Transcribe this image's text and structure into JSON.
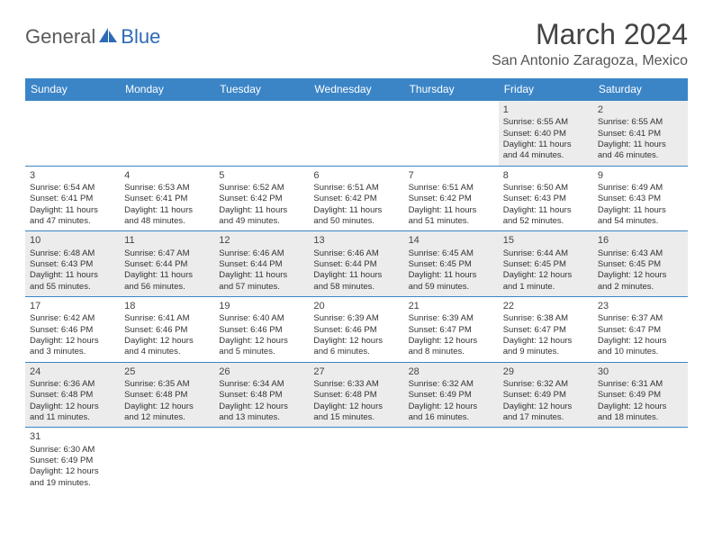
{
  "brand": {
    "text1": "General",
    "text2": "Blue",
    "logo_color": "#2d6bb5",
    "text_color": "#5a5a5a"
  },
  "title": "March 2024",
  "location": "San Antonio Zaragoza, Mexico",
  "colors": {
    "header_bg": "#3b85c7",
    "header_text": "#ffffff",
    "row_alt_bg": "#ececec",
    "border": "#3b85c7"
  },
  "weekdays": [
    "Sunday",
    "Monday",
    "Tuesday",
    "Wednesday",
    "Thursday",
    "Friday",
    "Saturday"
  ],
  "weeks": [
    [
      null,
      null,
      null,
      null,
      null,
      {
        "n": "1",
        "sr": "Sunrise: 6:55 AM",
        "ss": "Sunset: 6:40 PM",
        "d1": "Daylight: 11 hours",
        "d2": "and 44 minutes."
      },
      {
        "n": "2",
        "sr": "Sunrise: 6:55 AM",
        "ss": "Sunset: 6:41 PM",
        "d1": "Daylight: 11 hours",
        "d2": "and 46 minutes."
      }
    ],
    [
      {
        "n": "3",
        "sr": "Sunrise: 6:54 AM",
        "ss": "Sunset: 6:41 PM",
        "d1": "Daylight: 11 hours",
        "d2": "and 47 minutes."
      },
      {
        "n": "4",
        "sr": "Sunrise: 6:53 AM",
        "ss": "Sunset: 6:41 PM",
        "d1": "Daylight: 11 hours",
        "d2": "and 48 minutes."
      },
      {
        "n": "5",
        "sr": "Sunrise: 6:52 AM",
        "ss": "Sunset: 6:42 PM",
        "d1": "Daylight: 11 hours",
        "d2": "and 49 minutes."
      },
      {
        "n": "6",
        "sr": "Sunrise: 6:51 AM",
        "ss": "Sunset: 6:42 PM",
        "d1": "Daylight: 11 hours",
        "d2": "and 50 minutes."
      },
      {
        "n": "7",
        "sr": "Sunrise: 6:51 AM",
        "ss": "Sunset: 6:42 PM",
        "d1": "Daylight: 11 hours",
        "d2": "and 51 minutes."
      },
      {
        "n": "8",
        "sr": "Sunrise: 6:50 AM",
        "ss": "Sunset: 6:43 PM",
        "d1": "Daylight: 11 hours",
        "d2": "and 52 minutes."
      },
      {
        "n": "9",
        "sr": "Sunrise: 6:49 AM",
        "ss": "Sunset: 6:43 PM",
        "d1": "Daylight: 11 hours",
        "d2": "and 54 minutes."
      }
    ],
    [
      {
        "n": "10",
        "sr": "Sunrise: 6:48 AM",
        "ss": "Sunset: 6:43 PM",
        "d1": "Daylight: 11 hours",
        "d2": "and 55 minutes."
      },
      {
        "n": "11",
        "sr": "Sunrise: 6:47 AM",
        "ss": "Sunset: 6:44 PM",
        "d1": "Daylight: 11 hours",
        "d2": "and 56 minutes."
      },
      {
        "n": "12",
        "sr": "Sunrise: 6:46 AM",
        "ss": "Sunset: 6:44 PM",
        "d1": "Daylight: 11 hours",
        "d2": "and 57 minutes."
      },
      {
        "n": "13",
        "sr": "Sunrise: 6:46 AM",
        "ss": "Sunset: 6:44 PM",
        "d1": "Daylight: 11 hours",
        "d2": "and 58 minutes."
      },
      {
        "n": "14",
        "sr": "Sunrise: 6:45 AM",
        "ss": "Sunset: 6:45 PM",
        "d1": "Daylight: 11 hours",
        "d2": "and 59 minutes."
      },
      {
        "n": "15",
        "sr": "Sunrise: 6:44 AM",
        "ss": "Sunset: 6:45 PM",
        "d1": "Daylight: 12 hours",
        "d2": "and 1 minute."
      },
      {
        "n": "16",
        "sr": "Sunrise: 6:43 AM",
        "ss": "Sunset: 6:45 PM",
        "d1": "Daylight: 12 hours",
        "d2": "and 2 minutes."
      }
    ],
    [
      {
        "n": "17",
        "sr": "Sunrise: 6:42 AM",
        "ss": "Sunset: 6:46 PM",
        "d1": "Daylight: 12 hours",
        "d2": "and 3 minutes."
      },
      {
        "n": "18",
        "sr": "Sunrise: 6:41 AM",
        "ss": "Sunset: 6:46 PM",
        "d1": "Daylight: 12 hours",
        "d2": "and 4 minutes."
      },
      {
        "n": "19",
        "sr": "Sunrise: 6:40 AM",
        "ss": "Sunset: 6:46 PM",
        "d1": "Daylight: 12 hours",
        "d2": "and 5 minutes."
      },
      {
        "n": "20",
        "sr": "Sunrise: 6:39 AM",
        "ss": "Sunset: 6:46 PM",
        "d1": "Daylight: 12 hours",
        "d2": "and 6 minutes."
      },
      {
        "n": "21",
        "sr": "Sunrise: 6:39 AM",
        "ss": "Sunset: 6:47 PM",
        "d1": "Daylight: 12 hours",
        "d2": "and 8 minutes."
      },
      {
        "n": "22",
        "sr": "Sunrise: 6:38 AM",
        "ss": "Sunset: 6:47 PM",
        "d1": "Daylight: 12 hours",
        "d2": "and 9 minutes."
      },
      {
        "n": "23",
        "sr": "Sunrise: 6:37 AM",
        "ss": "Sunset: 6:47 PM",
        "d1": "Daylight: 12 hours",
        "d2": "and 10 minutes."
      }
    ],
    [
      {
        "n": "24",
        "sr": "Sunrise: 6:36 AM",
        "ss": "Sunset: 6:48 PM",
        "d1": "Daylight: 12 hours",
        "d2": "and 11 minutes."
      },
      {
        "n": "25",
        "sr": "Sunrise: 6:35 AM",
        "ss": "Sunset: 6:48 PM",
        "d1": "Daylight: 12 hours",
        "d2": "and 12 minutes."
      },
      {
        "n": "26",
        "sr": "Sunrise: 6:34 AM",
        "ss": "Sunset: 6:48 PM",
        "d1": "Daylight: 12 hours",
        "d2": "and 13 minutes."
      },
      {
        "n": "27",
        "sr": "Sunrise: 6:33 AM",
        "ss": "Sunset: 6:48 PM",
        "d1": "Daylight: 12 hours",
        "d2": "and 15 minutes."
      },
      {
        "n": "28",
        "sr": "Sunrise: 6:32 AM",
        "ss": "Sunset: 6:49 PM",
        "d1": "Daylight: 12 hours",
        "d2": "and 16 minutes."
      },
      {
        "n": "29",
        "sr": "Sunrise: 6:32 AM",
        "ss": "Sunset: 6:49 PM",
        "d1": "Daylight: 12 hours",
        "d2": "and 17 minutes."
      },
      {
        "n": "30",
        "sr": "Sunrise: 6:31 AM",
        "ss": "Sunset: 6:49 PM",
        "d1": "Daylight: 12 hours",
        "d2": "and 18 minutes."
      }
    ],
    [
      {
        "n": "31",
        "sr": "Sunrise: 6:30 AM",
        "ss": "Sunset: 6:49 PM",
        "d1": "Daylight: 12 hours",
        "d2": "and 19 minutes."
      },
      null,
      null,
      null,
      null,
      null,
      null
    ]
  ]
}
